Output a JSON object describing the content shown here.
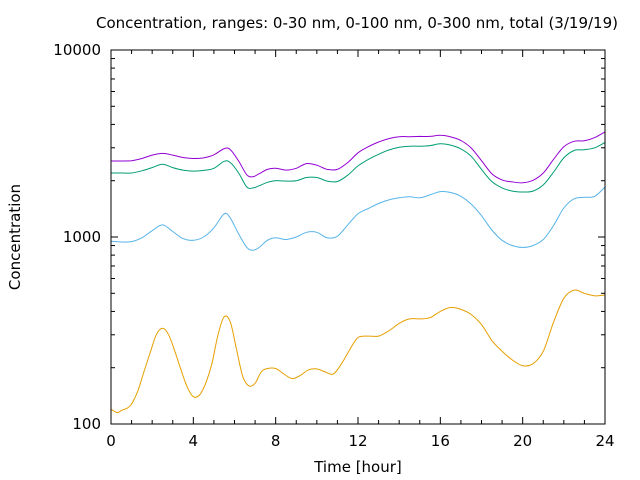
{
  "chart_data": {
    "type": "line",
    "title": "Concentration, ranges: 0-30 nm, 0-100 nm, 0-300 nm, total (3/19/19)",
    "xlabel": "Time [hour]",
    "ylabel": "Concentration",
    "xlim": [
      0,
      24
    ],
    "ylim": [
      100,
      10000
    ],
    "yscale": "log",
    "grid": false,
    "legend": "none",
    "xticks": [
      0,
      4,
      8,
      12,
      16,
      20,
      24
    ],
    "xtick_labels": [
      "0",
      "4",
      "8",
      "12",
      "16",
      "20",
      "24"
    ],
    "yticks": [
      100,
      1000,
      10000
    ],
    "ytick_labels": [
      "100",
      "1000",
      "10000"
    ],
    "series": [
      {
        "color": "#e69f00",
        "x": [
          0,
          0.3,
          0.5,
          0.8,
          1.0,
          1.3,
          1.6,
          1.9,
          2.2,
          2.5,
          2.8,
          3.1,
          3.4,
          3.7,
          4.0,
          4.3,
          4.6,
          4.9,
          5.2,
          5.5,
          5.8,
          6.1,
          6.4,
          6.7,
          7.0,
          7.3,
          7.6,
          8.0,
          8.4,
          8.8,
          9.2,
          9.6,
          10.0,
          10.4,
          10.8,
          11.2,
          11.6,
          12.0,
          12.5,
          13.0,
          13.5,
          14.0,
          14.5,
          15.0,
          15.5,
          16.0,
          16.5,
          17.0,
          17.5,
          18.0,
          18.5,
          19.0,
          19.5,
          20.0,
          20.5,
          21.0,
          21.5,
          22.0,
          22.5,
          23.0,
          23.5,
          24.0
        ],
        "values": [
          120,
          115,
          118,
          122,
          128,
          150,
          190,
          240,
          300,
          325,
          300,
          245,
          195,
          158,
          140,
          143,
          165,
          210,
          300,
          375,
          350,
          250,
          180,
          160,
          165,
          190,
          198,
          198,
          185,
          175,
          182,
          195,
          197,
          190,
          185,
          210,
          250,
          290,
          295,
          295,
          315,
          345,
          365,
          365,
          370,
          400,
          420,
          410,
          385,
          340,
          280,
          245,
          220,
          205,
          210,
          245,
          350,
          470,
          520,
          500,
          485,
          490
        ]
      },
      {
        "color": "#56b4e9",
        "x": [
          0,
          0.5,
          1.0,
          1.5,
          2.0,
          2.5,
          3.0,
          3.5,
          4.0,
          4.5,
          5.0,
          5.5,
          5.8,
          6.2,
          6.6,
          6.9,
          7.2,
          7.6,
          8.0,
          8.5,
          9.0,
          9.5,
          10.0,
          10.5,
          11.0,
          11.5,
          12.0,
          12.5,
          13.0,
          13.5,
          14.0,
          14.5,
          15.0,
          15.5,
          16.0,
          16.5,
          17.0,
          17.5,
          18.0,
          18.5,
          19.0,
          19.5,
          20.0,
          20.5,
          21.0,
          21.5,
          22.0,
          22.5,
          23.0,
          23.5,
          24.0
        ],
        "values": [
          950,
          940,
          945,
          990,
          1080,
          1160,
          1070,
          980,
          960,
          1000,
          1120,
          1330,
          1260,
          1040,
          880,
          850,
          880,
          960,
          990,
          970,
          1000,
          1060,
          1060,
          990,
          1010,
          1160,
          1330,
          1420,
          1510,
          1580,
          1620,
          1640,
          1620,
          1680,
          1750,
          1730,
          1650,
          1500,
          1300,
          1090,
          960,
          900,
          880,
          900,
          970,
          1150,
          1430,
          1600,
          1630,
          1650,
          1850
        ]
      },
      {
        "color": "#009e73",
        "x": [
          0,
          0.5,
          1.0,
          1.5,
          2.0,
          2.5,
          3.0,
          3.5,
          4.0,
          4.5,
          5.0,
          5.5,
          5.8,
          6.2,
          6.6,
          6.9,
          7.2,
          7.6,
          8.0,
          8.5,
          9.0,
          9.5,
          10.0,
          10.5,
          11.0,
          11.5,
          12.0,
          12.5,
          13.0,
          13.5,
          14.0,
          14.5,
          15.0,
          15.5,
          16.0,
          16.5,
          17.0,
          17.5,
          18.0,
          18.5,
          19.0,
          19.5,
          20.0,
          20.5,
          21.0,
          21.5,
          22.0,
          22.5,
          23.0,
          23.5,
          24.0
        ],
        "values": [
          2200,
          2200,
          2200,
          2260,
          2350,
          2450,
          2350,
          2280,
          2250,
          2270,
          2330,
          2540,
          2500,
          2200,
          1850,
          1830,
          1880,
          1960,
          2000,
          1990,
          2000,
          2080,
          2080,
          1990,
          1980,
          2140,
          2400,
          2600,
          2770,
          2920,
          3020,
          3060,
          3060,
          3080,
          3150,
          3100,
          2960,
          2700,
          2300,
          1980,
          1830,
          1760,
          1740,
          1760,
          1900,
          2220,
          2650,
          2900,
          2930,
          3000,
          3200
        ]
      },
      {
        "color": "#9400d3",
        "x": [
          0,
          0.5,
          1.0,
          1.5,
          2.0,
          2.5,
          3.0,
          3.5,
          4.0,
          4.5,
          5.0,
          5.5,
          5.8,
          6.2,
          6.6,
          6.9,
          7.2,
          7.6,
          8.0,
          8.5,
          9.0,
          9.5,
          10.0,
          10.5,
          11.0,
          11.5,
          12.0,
          12.5,
          13.0,
          13.5,
          14.0,
          14.5,
          15.0,
          15.5,
          16.0,
          16.5,
          17.0,
          17.5,
          18.0,
          18.5,
          19.0,
          19.5,
          20.0,
          20.5,
          21.0,
          21.5,
          22.0,
          22.5,
          23.0,
          23.5,
          24.0
        ],
        "values": [
          2550,
          2550,
          2560,
          2630,
          2740,
          2800,
          2740,
          2660,
          2630,
          2650,
          2750,
          2970,
          2930,
          2550,
          2150,
          2100,
          2180,
          2300,
          2330,
          2280,
          2330,
          2470,
          2420,
          2300,
          2300,
          2500,
          2820,
          3040,
          3220,
          3360,
          3440,
          3440,
          3450,
          3450,
          3500,
          3430,
          3280,
          2990,
          2560,
          2180,
          2020,
          1970,
          1950,
          2010,
          2200,
          2600,
          3040,
          3250,
          3270,
          3400,
          3650
        ]
      }
    ]
  }
}
